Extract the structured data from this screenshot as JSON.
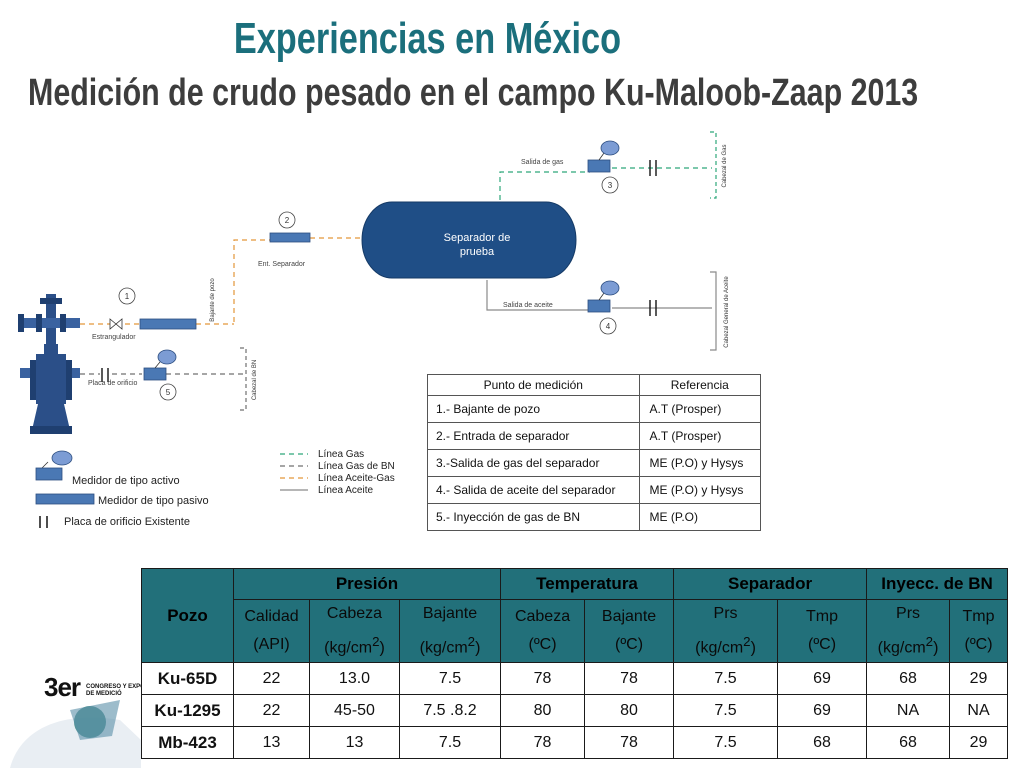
{
  "title": "Experiencias en México",
  "subtitle": "Medición de crudo pesado en el campo Ku-Maloob-Zaap 2013",
  "diagram": {
    "separator_label_1": "Separador de",
    "separator_label_2": "prueba",
    "labels": {
      "gas_outlet": "Salida de gas",
      "oil_outlet": "Salida de aceite",
      "sep_inlet": "Ent. Separador",
      "choke": "Estrangulador",
      "orifice_plate": "Placa de orificio",
      "well_riser": "Bajante de pozo",
      "gas_header": "Cabezal de Gas",
      "oil_header": "Cabezal General de Aceite",
      "bn_header": "Cabezal de BN"
    },
    "points": [
      "1",
      "2",
      "3",
      "4",
      "5"
    ],
    "meter_legend": [
      {
        "icon": "active-meter-icon",
        "label": "Medidor de tipo activo"
      },
      {
        "icon": "passive-meter-icon",
        "label": "Medidor de tipo pasivo"
      },
      {
        "icon": "orifice-plate-icon",
        "label": "Placa de orificio Existente"
      }
    ],
    "line_legend": [
      {
        "label": "Línea Gas",
        "color": "#2ea87a",
        "dash": "5,4"
      },
      {
        "label": "Línea Gas de BN",
        "color": "#707070",
        "dash": "5,4"
      },
      {
        "label": "Línea Aceite-Gas",
        "color": "#e3963a",
        "dash": "5,4"
      },
      {
        "label": "Línea Aceite",
        "color": "#8a8a8a",
        "dash": ""
      }
    ]
  },
  "reference_table": {
    "headers": [
      "Punto de medición",
      "Referencia"
    ],
    "rows": [
      [
        "1.- Bajante de pozo",
        "A.T (Prosper)"
      ],
      [
        "2.- Entrada de separador",
        "A.T (Prosper)"
      ],
      [
        "3.-Salida de gas del separador",
        "ME (P.O) y Hysys"
      ],
      [
        "4.- Salida de aceite del separador",
        "ME (P.O) y Hysys"
      ],
      [
        "5.- Inyección de gas de BN",
        "ME (P.O)"
      ]
    ]
  },
  "data_table": {
    "well_header": "Pozo",
    "groups": [
      "Presión",
      "Temperatura",
      "Separador",
      "Inyecc. de BN"
    ],
    "columns": [
      {
        "name": "Calidad",
        "unit": "(API)"
      },
      {
        "name": "Cabeza",
        "unit": "(kg/cm",
        "sup": "2",
        "close": ")"
      },
      {
        "name": "Bajante",
        "unit": "(kg/cm",
        "sup": "2",
        "close": ")"
      },
      {
        "name": "Cabeza",
        "unit": "(ºC)"
      },
      {
        "name": "Bajante",
        "unit": "(ºC)"
      },
      {
        "name": "Prs",
        "unit": "(kg/cm",
        "sup": "2",
        "close": ")"
      },
      {
        "name": "Tmp",
        "unit": "(ºC)"
      },
      {
        "name": "Prs",
        "unit": "(kg/cm",
        "sup": "2",
        "close": ")"
      },
      {
        "name": "Tmp",
        "unit": "(ºC)"
      }
    ],
    "rows": [
      {
        "well": "Ku-65D",
        "values": [
          "22",
          "13.0",
          "7.5",
          "78",
          "78",
          "7.5",
          "69",
          "68",
          "29"
        ]
      },
      {
        "well": "Ku-1295",
        "values": [
          "22",
          "45-50",
          "7.5 .8.2",
          "80",
          "80",
          "7.5",
          "69",
          "NA",
          "NA"
        ]
      },
      {
        "well": "Mb-423",
        "values": [
          "13",
          "13",
          "7.5",
          "78",
          "78",
          "7.5",
          "68",
          "68",
          "29"
        ]
      }
    ]
  },
  "logo": {
    "big": "3er",
    "small_1": "CONGRESO Y EXPO",
    "small_2": "DE MEDICIÓ"
  },
  "colors": {
    "title": "#1b6f7c",
    "header_fill": "#22707a",
    "separator_fill": "#1f4e86",
    "meter_fill": "#4a78b4"
  }
}
